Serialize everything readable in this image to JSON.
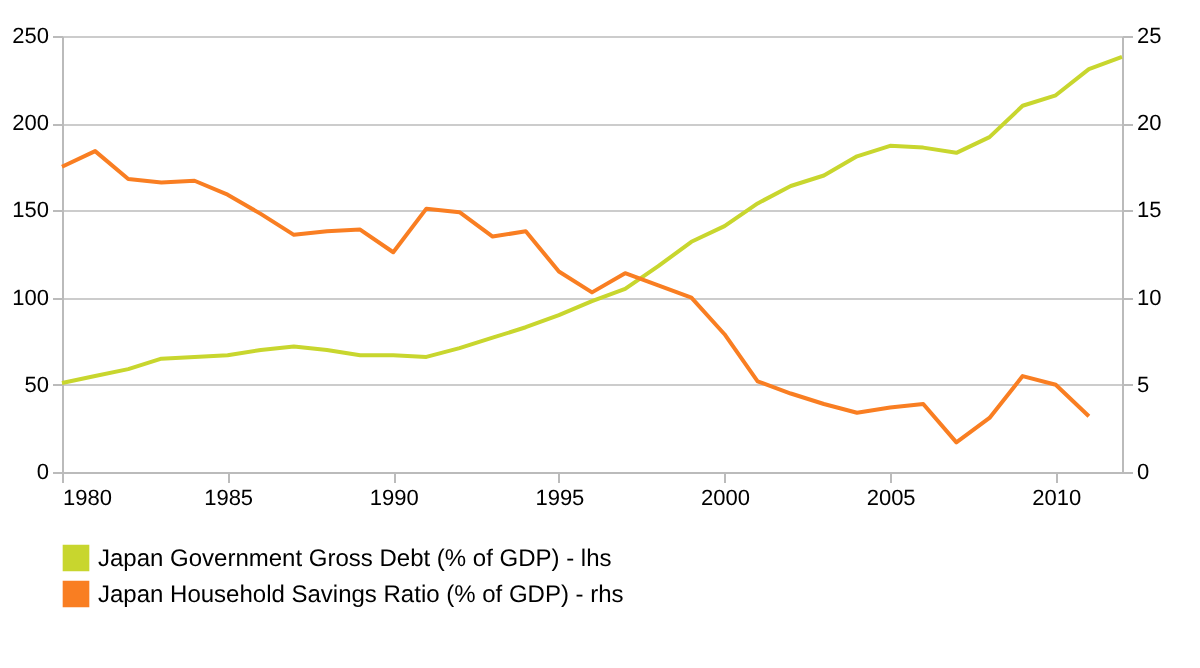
{
  "chart_data": {
    "type": "line",
    "x": [
      1980,
      1981,
      1982,
      1983,
      1984,
      1985,
      1986,
      1987,
      1988,
      1989,
      1990,
      1991,
      1992,
      1993,
      1994,
      1995,
      1996,
      1997,
      1998,
      1999,
      2000,
      2001,
      2002,
      2003,
      2004,
      2005,
      2006,
      2007,
      2008,
      2009,
      2010,
      2011,
      2012
    ],
    "series": [
      {
        "name": "Japan Government Gross Debt (% of GDP) - lhs",
        "color": "#c8d62e",
        "values": [
          51,
          55,
          59,
          65,
          66,
          67,
          70,
          72,
          70,
          67,
          67,
          66,
          71,
          77,
          83,
          90,
          98,
          105,
          118,
          132,
          141,
          154,
          164,
          170,
          181,
          187,
          186,
          183,
          192,
          210,
          216,
          231,
          238
        ]
      },
      {
        "name": "Japan Household Savings Ratio (% of GDP) - rhs",
        "color": "#f97e22",
        "axis": "y2",
        "values": [
          17.5,
          18.4,
          16.8,
          16.6,
          16.7,
          15.9,
          14.8,
          13.6,
          13.8,
          13.9,
          12.6,
          15.1,
          14.9,
          13.5,
          13.8,
          11.5,
          10.3,
          11.4,
          10.7,
          10.0,
          7.9,
          5.2,
          4.5,
          3.9,
          3.4,
          3.7,
          3.9,
          1.7,
          3.1,
          5.5,
          5.0,
          3.2,
          null
        ]
      }
    ],
    "xlim": [
      1980,
      2012
    ],
    "xticks": [
      1980,
      1985,
      1990,
      1995,
      2000,
      2005,
      2010
    ],
    "ylim": [
      0,
      250
    ],
    "yticks": [
      0,
      50,
      100,
      150,
      200,
      250
    ],
    "y2lim": [
      0,
      25
    ],
    "y2ticks": [
      0,
      5,
      10,
      15,
      20,
      25
    ],
    "grid": "y",
    "legend": "bottom left",
    "marker": "none",
    "line_style": "solid"
  }
}
